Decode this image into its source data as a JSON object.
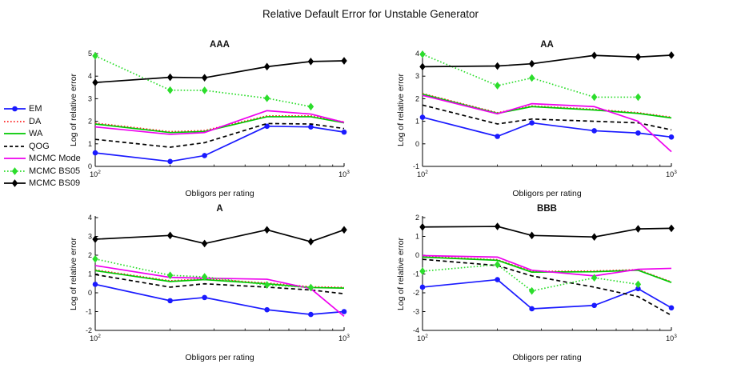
{
  "figure": {
    "title": "Relative Default Error for Unstable Generator",
    "background": "#ffffff",
    "text_color": "#111111"
  },
  "legend": {
    "position": "left-middle",
    "items": [
      {
        "label": "EM",
        "color": "#1a1aff",
        "dash": "solid",
        "marker": "circle"
      },
      {
        "label": "DA",
        "color": "#ff2222",
        "dash": "dotted",
        "marker": "none"
      },
      {
        "label": "WA",
        "color": "#00c800",
        "dash": "solid",
        "marker": "none"
      },
      {
        "label": "QOG",
        "color": "#000000",
        "dash": "dashed",
        "marker": "none"
      },
      {
        "label": "MCMC Mode",
        "color": "#ee00ee",
        "dash": "solid",
        "marker": "none"
      },
      {
        "label": "MCMC BS05",
        "color": "#2cdd2c",
        "dash": "dotted",
        "marker": "diamond"
      },
      {
        "label": "MCMC BS09",
        "color": "#000000",
        "dash": "solid",
        "marker": "diamond"
      }
    ]
  },
  "axes": {
    "xlabel": "Obligors per rating",
    "ylabel": "Log of relative error",
    "xscale": "log",
    "x_major_ticks": [
      100,
      1000
    ],
    "x_major_tick_labels": [
      "10^2",
      "10^3"
    ],
    "x_minor_ticks": [
      200,
      300,
      400,
      500,
      600,
      700,
      800,
      900
    ],
    "grid": false
  },
  "chart_data": [
    {
      "type": "line",
      "title": "AAA",
      "xlabel": "Obligors per rating",
      "ylabel": "Log of relative error",
      "xlim": [
        100,
        1000
      ],
      "ylim": [
        0,
        5
      ],
      "yticks": [
        0,
        1,
        2,
        3,
        4,
        5
      ],
      "x": [
        100,
        200,
        275,
        490,
        735,
        1000
      ],
      "series": [
        {
          "name": "EM",
          "values": [
            0.6,
            0.22,
            0.48,
            1.78,
            1.75,
            1.52
          ]
        },
        {
          "name": "DA",
          "values": [
            1.92,
            1.54,
            1.59,
            2.24,
            2.24,
            1.97
          ]
        },
        {
          "name": "WA",
          "values": [
            1.88,
            1.5,
            1.55,
            2.2,
            2.2,
            1.93
          ]
        },
        {
          "name": "QOG",
          "values": [
            1.2,
            0.85,
            1.05,
            1.9,
            1.88,
            1.68
          ]
        },
        {
          "name": "MCMC Mode",
          "values": [
            1.75,
            1.42,
            1.5,
            2.47,
            2.32,
            1.95
          ]
        },
        {
          "name": "MCMC BS05",
          "values": [
            4.9,
            3.38,
            3.37,
            3.02,
            2.65,
            null
          ]
        },
        {
          "name": "MCMC BS09",
          "values": [
            3.72,
            3.95,
            3.93,
            4.42,
            4.65,
            4.68
          ]
        }
      ]
    },
    {
      "type": "line",
      "title": "AA",
      "xlabel": "Obligors per rating",
      "ylabel": "Log of relative error",
      "xlim": [
        100,
        1000
      ],
      "ylim": [
        -1,
        4
      ],
      "yticks": [
        -1,
        0,
        1,
        2,
        3,
        4
      ],
      "x": [
        100,
        200,
        275,
        490,
        735,
        1000
      ],
      "series": [
        {
          "name": "EM",
          "values": [
            1.18,
            0.33,
            0.93,
            0.58,
            0.48,
            0.3
          ]
        },
        {
          "name": "DA",
          "values": [
            2.23,
            1.38,
            1.68,
            1.53,
            1.38,
            1.18
          ]
        },
        {
          "name": "WA",
          "values": [
            2.2,
            1.35,
            1.65,
            1.5,
            1.35,
            1.15
          ]
        },
        {
          "name": "QOG",
          "values": [
            1.72,
            0.88,
            1.1,
            1.0,
            0.93,
            0.62
          ]
        },
        {
          "name": "MCMC Mode",
          "values": [
            2.15,
            1.33,
            1.78,
            1.65,
            1.0,
            -0.35
          ]
        },
        {
          "name": "MCMC BS05",
          "values": [
            3.97,
            2.58,
            2.92,
            2.07,
            2.07,
            null
          ]
        },
        {
          "name": "MCMC BS09",
          "values": [
            3.42,
            3.45,
            3.55,
            3.92,
            3.85,
            3.93
          ]
        }
      ]
    },
    {
      "type": "line",
      "title": "A",
      "xlabel": "Obligors per rating",
      "ylabel": "Log of relative error",
      "xlim": [
        100,
        1000
      ],
      "ylim": [
        -2,
        4
      ],
      "yticks": [
        -2,
        -1,
        0,
        1,
        2,
        3,
        4
      ],
      "x": [
        100,
        200,
        275,
        490,
        735,
        1000
      ],
      "series": [
        {
          "name": "EM",
          "values": [
            0.45,
            -0.42,
            -0.25,
            -0.9,
            -1.15,
            -1.0
          ]
        },
        {
          "name": "DA",
          "values": [
            1.22,
            0.64,
            0.74,
            0.52,
            0.32,
            0.29
          ]
        },
        {
          "name": "WA",
          "values": [
            1.18,
            0.6,
            0.7,
            0.48,
            0.28,
            0.25
          ]
        },
        {
          "name": "QOG",
          "values": [
            0.97,
            0.3,
            0.48,
            0.3,
            0.15,
            -0.05
          ]
        },
        {
          "name": "MCMC Mode",
          "values": [
            1.45,
            0.82,
            0.78,
            0.72,
            0.22,
            -1.25
          ]
        },
        {
          "name": "MCMC BS05",
          "values": [
            1.8,
            0.93,
            0.85,
            0.42,
            0.28,
            null
          ]
        },
        {
          "name": "MCMC BS09",
          "values": [
            2.85,
            3.05,
            2.62,
            3.35,
            2.72,
            3.35
          ]
        }
      ]
    },
    {
      "type": "line",
      "title": "BBB",
      "xlabel": "Obligors per rating",
      "ylabel": "Log of relative error",
      "xlim": [
        100,
        1000
      ],
      "ylim": [
        -4,
        2
      ],
      "yticks": [
        -4,
        -3,
        -2,
        -1,
        0,
        1,
        2
      ],
      "x": [
        100,
        200,
        275,
        490,
        735,
        1000
      ],
      "series": [
        {
          "name": "EM",
          "values": [
            -1.7,
            -1.3,
            -2.85,
            -2.67,
            -1.78,
            -2.8
          ]
        },
        {
          "name": "DA",
          "values": [
            -0.07,
            -0.24,
            -0.86,
            -0.84,
            -0.77,
            -1.42
          ]
        },
        {
          "name": "WA",
          "values": [
            -0.1,
            -0.27,
            -0.9,
            -0.88,
            -0.8,
            -1.45
          ]
        },
        {
          "name": "QOG",
          "values": [
            -0.22,
            -0.55,
            -1.1,
            -1.7,
            -2.2,
            -3.2
          ]
        },
        {
          "name": "MCMC Mode",
          "values": [
            -0.02,
            -0.1,
            -0.8,
            -1.1,
            -0.75,
            -0.7
          ]
        },
        {
          "name": "MCMC BS05",
          "values": [
            -0.85,
            -0.5,
            -1.9,
            -1.2,
            -1.55,
            null
          ]
        },
        {
          "name": "MCMC BS09",
          "values": [
            1.5,
            1.53,
            1.05,
            0.97,
            1.4,
            1.43
          ]
        }
      ]
    }
  ]
}
